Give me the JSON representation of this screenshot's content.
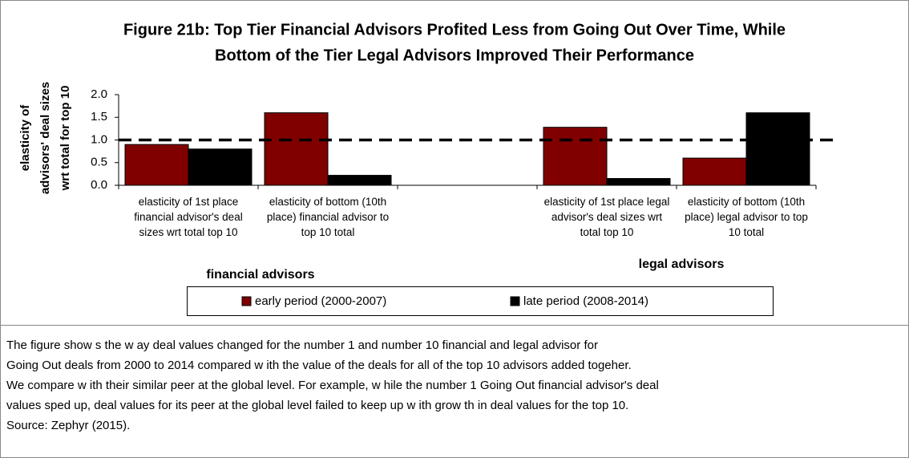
{
  "chart_data": {
    "type": "bar",
    "title": [
      "Figure 21b: Top Tier Financial Advisors Profited Less from Going Out Over Time, While",
      "Bottom of the Tier Legal Advisors Improved Their Performance"
    ],
    "ylabel": [
      "elasticity of",
      "advisors' deal sizes",
      "wrt total for top 10"
    ],
    "categories": [
      "elasticity of 1st place financial advisor's deal sizes wrt total top 10",
      "elasticity of bottom (10th place) financial advisor to top 10 total",
      null,
      "elasticity of 1st place legal advisor's deal sizes wrt total top 10",
      "elasticity of bottom (10th place) legal advisor to top 10 total"
    ],
    "group_labels": [
      "financial advisors",
      "legal advisors"
    ],
    "series": [
      {
        "name": "early period (2000-2007)",
        "color": "#800000",
        "values": [
          0.9,
          1.6,
          null,
          1.28,
          0.6
        ]
      },
      {
        "name": "late period (2008-2014)",
        "color": "#000000",
        "values": [
          0.8,
          0.22,
          null,
          0.15,
          1.6
        ]
      }
    ],
    "ylim": [
      0,
      2
    ],
    "yticks": [
      {
        "value": 0,
        "label": "0.0"
      },
      0.5,
      {
        "value": 1,
        "label": "1.0"
      },
      1.5,
      {
        "value": 2,
        "label": "2.0"
      }
    ],
    "hline": 1,
    "legend": "bottom"
  },
  "caption": [
    "The figure show s the w ay deal values changed for the number 1 and number 10 financial and legal advisor for",
    "Going Out deals from 2000 to 2014 compared w ith the value of the deals for all of the top 10 advisors added togeher.",
    "We compare w ith their similar peer at the global level. For example, w hile the number 1 Going Out financial advisor's deal",
    "values sped up, deal values for its peer at the global level failed to keep up w ith grow th in deal values for the top 10.",
    "Source: Zephyr (2015)."
  ]
}
